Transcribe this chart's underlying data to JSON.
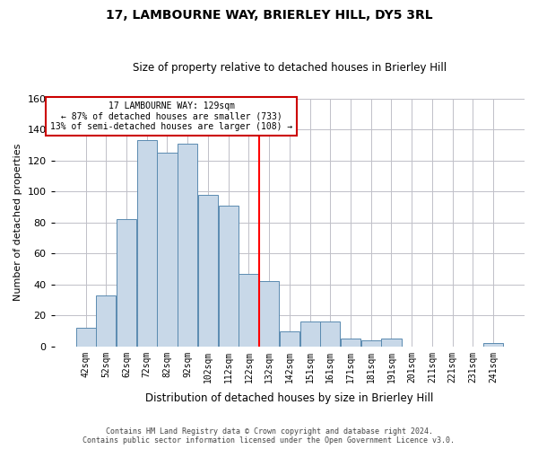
{
  "title": "17, LAMBOURNE WAY, BRIERLEY HILL, DY5 3RL",
  "subtitle": "Size of property relative to detached houses in Brierley Hill",
  "xlabel": "Distribution of detached houses by size in Brierley Hill",
  "ylabel": "Number of detached properties",
  "bar_labels": [
    "42sqm",
    "52sqm",
    "62sqm",
    "72sqm",
    "82sqm",
    "92sqm",
    "102sqm",
    "112sqm",
    "122sqm",
    "132sqm",
    "142sqm",
    "151sqm",
    "161sqm",
    "171sqm",
    "181sqm",
    "191sqm",
    "201sqm",
    "211sqm",
    "221sqm",
    "231sqm",
    "241sqm"
  ],
  "bar_heights": [
    12,
    33,
    82,
    133,
    125,
    131,
    98,
    91,
    47,
    42,
    10,
    16,
    16,
    5,
    4,
    5,
    0,
    0,
    0,
    0,
    2
  ],
  "bar_color": "#c8d8e8",
  "bar_edge_color": "#5a8ab0",
  "ylim": [
    0,
    160
  ],
  "yticks": [
    0,
    20,
    40,
    60,
    80,
    100,
    120,
    140,
    160
  ],
  "vline_x_index": 8.5,
  "annotation_title": "17 LAMBOURNE WAY: 129sqm",
  "annotation_line1": "← 87% of detached houses are smaller (733)",
  "annotation_line2": "13% of semi-detached houses are larger (108) →",
  "annotation_box_color": "#cc0000",
  "footnote1": "Contains HM Land Registry data © Crown copyright and database right 2024.",
  "footnote2": "Contains public sector information licensed under the Open Government Licence v3.0."
}
